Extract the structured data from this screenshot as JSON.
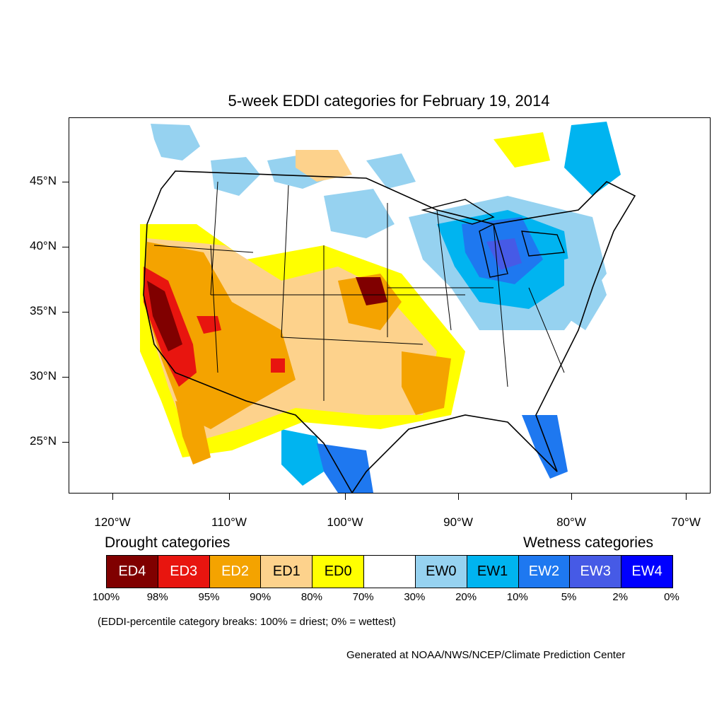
{
  "title": "5-week EDDI categories for February 19, 2014",
  "colors": {
    "ED4": "#800000",
    "ED3": "#e8150f",
    "ED2": "#f4a300",
    "ED1": "#fdd28c",
    "ED0": "#ffff00",
    "neutral": "#ffffff",
    "EW0": "#96d2f0",
    "EW1": "#00b4f0",
    "EW2": "#1e78f0",
    "EW3": "#465ae6",
    "EW4": "#0000ff"
  },
  "y_axis_labels": [
    "45°N",
    "40°N",
    "35°N",
    "30°N",
    "25°N"
  ],
  "x_axis_labels": [
    "120°W",
    "110°W",
    "100°W",
    "90°W",
    "80°W",
    "70°W"
  ],
  "legend": {
    "drought_heading": "Drought categories",
    "wetness_heading": "Wetness categories",
    "boxes": [
      {
        "label": "ED4",
        "color": "#800000",
        "text_color": "#ffffff"
      },
      {
        "label": "ED3",
        "color": "#e8150f",
        "text_color": "#ffffff"
      },
      {
        "label": "ED2",
        "color": "#f4a300",
        "text_color": "#ffffff"
      },
      {
        "label": "ED1",
        "color": "#fdd28c",
        "text_color": "#000000"
      },
      {
        "label": "ED0",
        "color": "#ffff00",
        "text_color": "#000000"
      },
      {
        "label": "",
        "color": "#ffffff",
        "text_color": "#000000"
      },
      {
        "label": "EW0",
        "color": "#96d2f0",
        "text_color": "#000000"
      },
      {
        "label": "EW1",
        "color": "#00b4f0",
        "text_color": "#000000"
      },
      {
        "label": "EW2",
        "color": "#1e78f0",
        "text_color": "#ffffff"
      },
      {
        "label": "EW3",
        "color": "#465ae6",
        "text_color": "#ffffff"
      },
      {
        "label": "EW4",
        "color": "#0000ff",
        "text_color": "#ffffff"
      }
    ],
    "percent_breaks": [
      "100%",
      "98%",
      "95%",
      "90%",
      "80%",
      "70%",
      "30%",
      "20%",
      "10%",
      "5%",
      "2%",
      "0%"
    ]
  },
  "note": "(EDDI-percentile category breaks: 100% = driest; 0% = wettest)",
  "credit": "Generated at NOAA/NWS/NCEP/Climate Prediction Center"
}
